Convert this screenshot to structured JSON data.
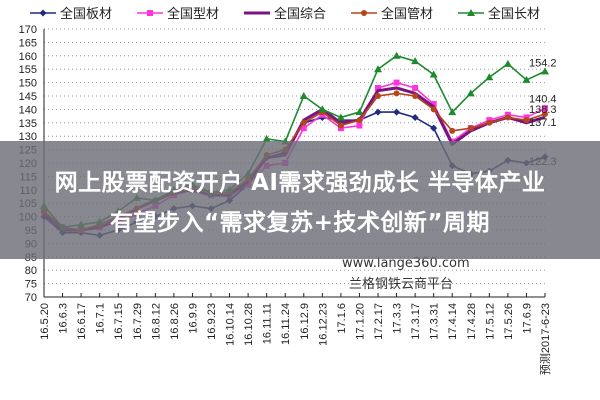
{
  "chart_data": {
    "type": "line",
    "title": "",
    "xlabel": "",
    "ylabel": "",
    "ylim": [
      70,
      170
    ],
    "yticks": [
      70,
      75,
      80,
      85,
      90,
      95,
      100,
      105,
      110,
      115,
      120,
      125,
      130,
      135,
      140,
      145,
      150,
      155,
      160,
      165,
      170
    ],
    "grid": "horizontal dotted",
    "legend_placement": "top",
    "categories": [
      "16.5.20",
      "16.6.3",
      "16.6.17",
      "16.7.1",
      "16.7.15",
      "16.7.29",
      "16.8.12",
      "16.8.26",
      "16.9.9",
      "16.9.23",
      "16.10.14",
      "16.10.28",
      "16.11.11",
      "16.11.24",
      "16.12.9",
      "16.12.23",
      "17.1.6",
      "17.1.20",
      "17.2.17",
      "17.3.3",
      "17.3.17",
      "17.3.31",
      "17.4.14",
      "17.4.28",
      "17.5.12",
      "17.5.26",
      "17.6.9",
      "预测2017-6-23"
    ],
    "series": [
      {
        "name": "全国板材",
        "color": "#1f2a80",
        "marker": "diamond",
        "values": [
          100,
          94,
          94,
          93,
          95,
          98,
          100,
          103,
          104,
          103,
          106,
          112,
          122,
          124,
          135,
          137,
          136,
          136,
          139,
          139,
          137,
          133,
          119,
          116,
          117,
          121,
          120,
          122.3
        ]
      },
      {
        "name": "全国型材",
        "color": "#ff33dd",
        "marker": "square",
        "values": [
          102,
          96,
          95,
          96,
          98,
          101,
          104,
          108,
          110,
          108,
          108,
          112,
          119,
          120,
          133,
          138,
          133,
          134,
          148,
          150,
          148,
          142,
          128,
          133,
          136,
          138,
          137,
          140.4
        ]
      },
      {
        "name": "全国综合",
        "color": "#7a1580",
        "marker": "none",
        "values": [
          101,
          95,
          95,
          96,
          99,
          103,
          106,
          109,
          110,
          108,
          108,
          113,
          122,
          123,
          136,
          140,
          135,
          136,
          147,
          148,
          146,
          141,
          127,
          132,
          135,
          137,
          135,
          137.1
        ]
      },
      {
        "name": "全国管材",
        "color": "#b5451b",
        "marker": "circle",
        "values": [
          102,
          96,
          95,
          97,
          100,
          103,
          106,
          109,
          111,
          109,
          109,
          114,
          123,
          125,
          135,
          139,
          134,
          136,
          145,
          146,
          145,
          140,
          132,
          133,
          135,
          137,
          136,
          138.3
        ]
      },
      {
        "name": "全国长材",
        "color": "#1e8a2e",
        "marker": "triangle",
        "values": [
          104,
          96,
          97,
          98,
          102,
          107,
          106,
          110,
          112,
          109,
          110,
          116,
          129,
          128,
          145,
          140,
          137,
          139,
          155,
          160,
          158,
          153,
          139,
          146,
          152,
          157,
          151,
          154.2
        ]
      }
    ],
    "end_labels": [
      "154.2",
      "140.4",
      "138.3",
      "137.1",
      "122.3"
    ]
  },
  "watermark": {
    "url": "www.lange360.com",
    "name": "兰格钢铁云商平台"
  },
  "banner": {
    "line1": "网上股票配资开户 AI需求强劲成长 半导体产业",
    "line2": "有望步入“需求复苏+技术创新”周期"
  }
}
